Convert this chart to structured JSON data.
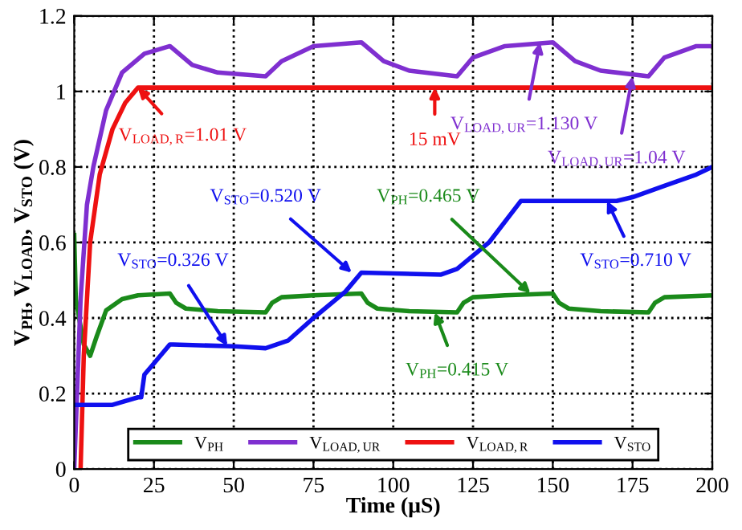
{
  "chart_data": {
    "type": "line",
    "xlabel": "Time (μS)",
    "ylabel": "V$_{PH}$, V$_{LOAD}$, V$_{STO}$ (V)",
    "xlim": [
      0,
      200
    ],
    "xticks": [
      0,
      25,
      50,
      75,
      100,
      125,
      150,
      175,
      200
    ],
    "ylim": [
      0,
      1.2
    ],
    "yticks": [
      0,
      0.2,
      0.4,
      0.6,
      0.8,
      1,
      1.2
    ],
    "grid": true,
    "legend": "bottom",
    "line_style": "solid",
    "marker": "none",
    "series": [
      {
        "name": "V$_{PH}$",
        "color": "#1a8a1a",
        "x": [
          0,
          0.5,
          3,
          5,
          7,
          10,
          15,
          20,
          30,
          32,
          35,
          45,
          60,
          62,
          65,
          75,
          90,
          92,
          95,
          105,
          120,
          122,
          125,
          135,
          150,
          152,
          155,
          165,
          180,
          182,
          185,
          200
        ],
        "values": [
          0.62,
          0.45,
          0.33,
          0.3,
          0.35,
          0.42,
          0.45,
          0.46,
          0.465,
          0.44,
          0.425,
          0.418,
          0.415,
          0.44,
          0.455,
          0.46,
          0.465,
          0.44,
          0.425,
          0.418,
          0.415,
          0.44,
          0.455,
          0.46,
          0.465,
          0.44,
          0.425,
          0.418,
          0.415,
          0.44,
          0.455,
          0.46
        ]
      },
      {
        "name": "V$_{LOAD,UR}$",
        "color": "#7f2fd0",
        "x": [
          0,
          2,
          4,
          6,
          10,
          15,
          22,
          30,
          37,
          45,
          60,
          65,
          75,
          90,
          97,
          105,
          120,
          125,
          135,
          150,
          157,
          165,
          180,
          185,
          195,
          200
        ],
        "values": [
          0,
          0.45,
          0.7,
          0.8,
          0.95,
          1.05,
          1.1,
          1.12,
          1.07,
          1.05,
          1.04,
          1.08,
          1.12,
          1.13,
          1.08,
          1.055,
          1.04,
          1.09,
          1.12,
          1.13,
          1.08,
          1.055,
          1.04,
          1.09,
          1.12,
          1.12
        ]
      },
      {
        "name": "V$_{LOAD,R}$",
        "color": "#ee1111",
        "x": [
          2,
          3,
          5,
          8,
          12,
          16,
          20,
          200
        ],
        "values": [
          0,
          0.3,
          0.6,
          0.78,
          0.9,
          0.97,
          1.01,
          1.01
        ]
      },
      {
        "name": "V$_{STO}$",
        "color": "#1010ee",
        "x": [
          0,
          12,
          20,
          21,
          22,
          25,
          27,
          30,
          31,
          50,
          60,
          67,
          75,
          85,
          90,
          115,
          120,
          130,
          140,
          170,
          175,
          185,
          195,
          200
        ],
        "values": [
          0.17,
          0.17,
          0.19,
          0.19,
          0.25,
          0.28,
          0.3,
          0.33,
          0.33,
          0.325,
          0.32,
          0.34,
          0.4,
          0.47,
          0.52,
          0.515,
          0.53,
          0.6,
          0.71,
          0.71,
          0.72,
          0.75,
          0.78,
          0.8
        ]
      }
    ],
    "annotations": [
      {
        "text": "V$_{LOAD,R}$=1.01 V",
        "x": 20,
        "y": 1.01
      },
      {
        "text": "15 mV",
        "x": 113,
        "y": 1.01
      },
      {
        "text": "V$_{LOAD,UR}$=1.130 V",
        "x": 146,
        "y": 1.13
      },
      {
        "text": "V$_{LOAD,UR}$=1.04 V",
        "x": 175,
        "y": 1.04
      },
      {
        "text": "V$_{STO}$=0.520 V",
        "x": 87,
        "y": 0.52
      },
      {
        "text": "V$_{PH}$=0.465 V",
        "x": 143,
        "y": 0.465
      },
      {
        "text": "V$_{PH}$=0.415 V",
        "x": 113,
        "y": 0.415
      },
      {
        "text": "V$_{STO}$=0.326 V",
        "x": 48,
        "y": 0.326
      },
      {
        "text": "V$_{STO}$=0.710 V",
        "x": 167,
        "y": 0.71
      }
    ]
  }
}
